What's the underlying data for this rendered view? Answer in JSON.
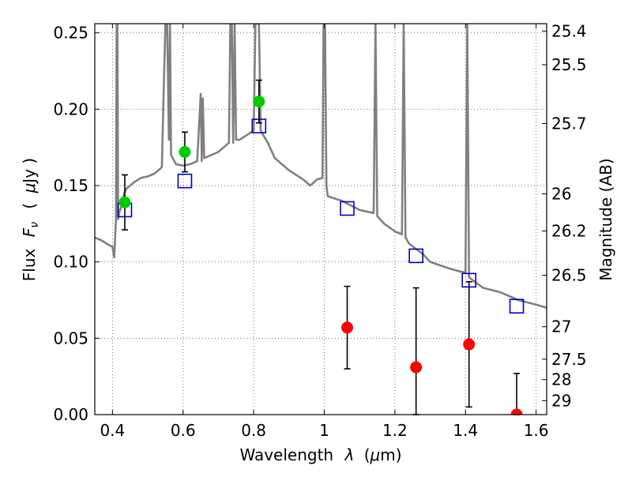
{
  "chart_data": {
    "type": "scatter",
    "xlabel_text": "Wavelength",
    "xlabel_symbol": "λ",
    "xlabel_unit_open": "(",
    "xlabel_unit_mu": "μ",
    "xlabel_unit_rest": "m)",
    "ylabel_text": "Flux",
    "ylabel_symbol_main": "F",
    "ylabel_symbol_sub": "ν",
    "ylabel_unit_open": "(",
    "ylabel_unit_mu": "μ",
    "ylabel_unit_rest": "Jy )",
    "y2label": "Magnitude (AB)",
    "xlim": [
      0.35,
      1.63
    ],
    "ylim": [
      0.0,
      0.256
    ],
    "grid": true,
    "x_ticks": [
      {
        "value": 0.4,
        "label": "0.4"
      },
      {
        "value": 0.6,
        "label": "0.6"
      },
      {
        "value": 0.8,
        "label": "0.8"
      },
      {
        "value": 1.0,
        "label": "1"
      },
      {
        "value": 1.2,
        "label": "1.2"
      },
      {
        "value": 1.4,
        "label": "1.4"
      },
      {
        "value": 1.6,
        "label": "1.6"
      }
    ],
    "y_ticks": [
      {
        "value": 0.0,
        "label": "0.00"
      },
      {
        "value": 0.05,
        "label": "0.05"
      },
      {
        "value": 0.1,
        "label": "0.10"
      },
      {
        "value": 0.15,
        "label": "0.15"
      },
      {
        "value": 0.2,
        "label": "0.20"
      },
      {
        "value": 0.25,
        "label": "0.25"
      }
    ],
    "y2_ticks": [
      {
        "value": 25.4,
        "label": "25.4"
      },
      {
        "value": 25.5,
        "label": "25.5"
      },
      {
        "value": 25.7,
        "label": "25.7"
      },
      {
        "value": 26,
        "label": "26"
      },
      {
        "value": 26.2,
        "label": "26.2"
      },
      {
        "value": 26.5,
        "label": "26.5"
      },
      {
        "value": 27,
        "label": "27"
      },
      {
        "value": 27.5,
        "label": "27.5"
      },
      {
        "value": 28,
        "label": "28"
      },
      {
        "value": 29,
        "label": "29"
      }
    ],
    "colors": {
      "model": "#808080",
      "detected": "#00cc00",
      "upper": "#ff0000",
      "model_phot": "#0000cc",
      "errorbar": "#000000",
      "grid": "#555555"
    },
    "series": [
      {
        "name": "model_spectrum",
        "style": "line",
        "x": [
          0.35,
          0.37,
          0.39,
          0.4,
          0.405,
          0.41,
          0.412,
          0.414,
          0.416,
          0.42,
          0.425,
          0.43,
          0.435,
          0.44,
          0.45,
          0.46,
          0.48,
          0.5,
          0.52,
          0.54,
          0.545,
          0.55,
          0.555,
          0.56,
          0.563,
          0.566,
          0.58,
          0.6,
          0.62,
          0.64,
          0.65,
          0.653,
          0.656,
          0.66,
          0.68,
          0.7,
          0.72,
          0.73,
          0.734,
          0.738,
          0.742,
          0.746,
          0.75,
          0.76,
          0.78,
          0.8,
          0.805,
          0.81,
          0.815,
          0.82,
          0.84,
          0.86,
          0.88,
          0.9,
          0.92,
          0.94,
          0.96,
          0.98,
          0.995,
          0.998,
          1.002,
          1.006,
          1.01,
          1.05,
          1.1,
          1.14,
          1.145,
          1.15,
          1.17,
          1.2,
          1.22,
          1.225,
          1.23,
          1.24,
          1.28,
          1.3,
          1.35,
          1.38,
          1.4,
          1.405,
          1.41,
          1.42,
          1.45,
          1.5,
          1.55,
          1.6,
          1.63
        ],
        "y": [
          0.116,
          0.114,
          0.111,
          0.11,
          0.103,
          0.128,
          0.256,
          0.256,
          0.128,
          0.133,
          0.136,
          0.142,
          0.146,
          0.148,
          0.15,
          0.152,
          0.155,
          0.156,
          0.158,
          0.162,
          0.21,
          0.256,
          0.256,
          0.18,
          0.256,
          0.17,
          0.164,
          0.163,
          0.164,
          0.166,
          0.21,
          0.166,
          0.207,
          0.168,
          0.17,
          0.172,
          0.176,
          0.178,
          0.256,
          0.256,
          0.178,
          0.256,
          0.18,
          0.18,
          0.183,
          0.186,
          0.256,
          0.256,
          0.256,
          0.186,
          0.178,
          0.168,
          0.164,
          0.16,
          0.157,
          0.154,
          0.15,
          0.154,
          0.155,
          0.256,
          0.256,
          0.15,
          0.143,
          0.14,
          0.134,
          0.132,
          0.256,
          0.13,
          0.125,
          0.12,
          0.118,
          0.256,
          0.116,
          0.112,
          0.105,
          0.1,
          0.096,
          0.094,
          0.093,
          0.256,
          0.09,
          0.088,
          0.083,
          0.08,
          0.075,
          0.072,
          0.07
        ]
      },
      {
        "name": "detections",
        "style": "circle",
        "x": [
          0.435,
          0.605,
          0.815
        ],
        "y": [
          0.139,
          0.172,
          0.205
        ],
        "yerr": [
          0.018,
          0.013,
          0.014
        ]
      },
      {
        "name": "nondetections",
        "style": "circle",
        "x": [
          1.065,
          1.26,
          1.41,
          1.545
        ],
        "y": [
          0.057,
          0.031,
          0.046,
          0.0
        ],
        "yerr": [
          0.027,
          0.052,
          0.041,
          0.027
        ]
      },
      {
        "name": "model_photometry",
        "style": "square",
        "x": [
          0.435,
          0.605,
          0.815,
          1.065,
          1.26,
          1.41,
          1.545
        ],
        "y": [
          0.134,
          0.153,
          0.189,
          0.135,
          0.104,
          0.088,
          0.071
        ]
      }
    ]
  }
}
